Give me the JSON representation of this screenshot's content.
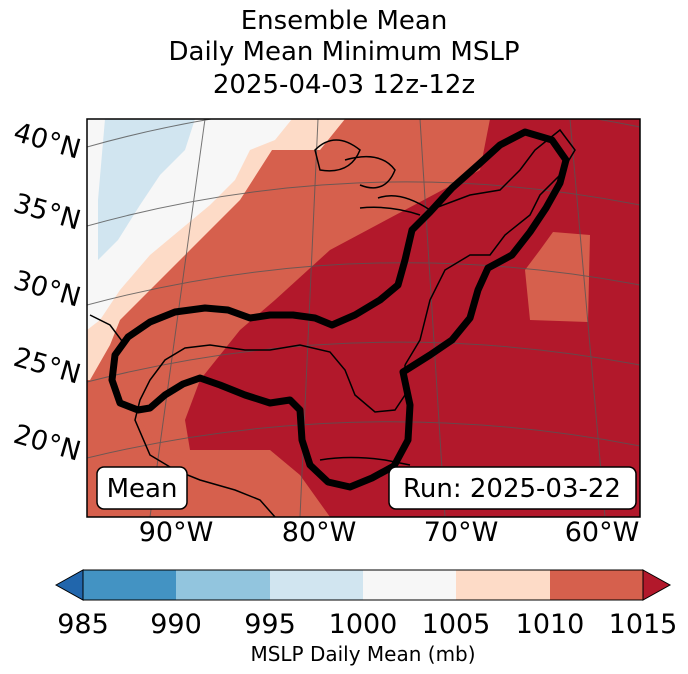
{
  "title": {
    "line1": "Ensemble Mean",
    "line2": "Daily Mean Minimum MSLP",
    "line3": "2025-04-03 12z-12z"
  },
  "map": {
    "lat_labels": [
      "40°N",
      "35°N",
      "30°N",
      "25°N",
      "20°N"
    ],
    "lon_labels": [
      "90°W",
      "80°W",
      "70°W",
      "60°W"
    ],
    "mean_label": "Mean",
    "run_label": "Run: 2025-03-22",
    "contour": "black outline enclosing ensemble mean low-pressure track"
  },
  "colorbar": {
    "ticks": [
      "985",
      "990",
      "995",
      "1000",
      "1005",
      "1010",
      "1015"
    ],
    "label": "MSLP Daily Mean (mb)",
    "colors": [
      "#2166ac",
      "#4393c3",
      "#92c5de",
      "#d1e5f0",
      "#f7f7f7",
      "#fddbc7",
      "#d6604d",
      "#b2182b"
    ],
    "extend": "both"
  },
  "colors": {
    "c985": "#4393c3",
    "c990": "#92c5de",
    "c995": "#d1e5f0",
    "c1000": "#f7f7f7",
    "c1005": "#fddbc7",
    "c1010": "#d6604d",
    "c1015": "#b2182b"
  }
}
